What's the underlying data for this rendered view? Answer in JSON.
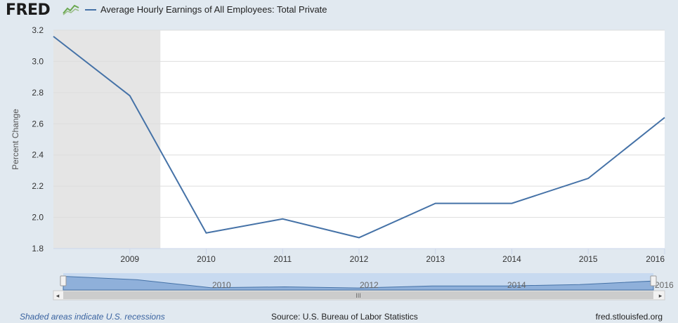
{
  "header": {
    "logo_text": "FRED",
    "logo_icon": "line-chart-icon"
  },
  "footer": {
    "recession_note": "Shaded areas indicate U.S. recessions",
    "source": "Source: U.S. Bureau of Labor Statistics",
    "site": "fred.stlouisfed.org"
  },
  "colors": {
    "series": "#4572a7",
    "recession": "#e5e5e5",
    "background": "#e1e9f0",
    "plot": "#ffffff",
    "navigator_fill": "#8fb0da",
    "navigator_bg": "#c8daf0"
  },
  "chart_data": {
    "type": "line",
    "title": "",
    "xlabel": "",
    "ylabel": "Percent Change",
    "x": [
      2008,
      2009,
      2010,
      2011,
      2012,
      2013,
      2014,
      2015,
      2016
    ],
    "series": [
      {
        "name": "Average Hourly Earnings of All Employees: Total Private",
        "values": [
          3.16,
          2.78,
          1.9,
          1.99,
          1.87,
          2.09,
          2.09,
          2.25,
          2.64
        ]
      }
    ],
    "xlim": [
      2008,
      2016
    ],
    "ylim": [
      1.8,
      3.2
    ],
    "yticks": [
      "1.8",
      "2.0",
      "2.2",
      "2.4",
      "2.6",
      "2.8",
      "3.0",
      "3.2"
    ],
    "xticks": [
      "2009",
      "2010",
      "2011",
      "2012",
      "2013",
      "2014",
      "2015",
      "2016"
    ],
    "recession": [
      2008,
      2009.4
    ],
    "grid": true,
    "legend": "top-left",
    "navigator": {
      "labels": [
        "2010",
        "2012",
        "2014",
        "2016"
      ],
      "scroll_grip": "III"
    }
  }
}
